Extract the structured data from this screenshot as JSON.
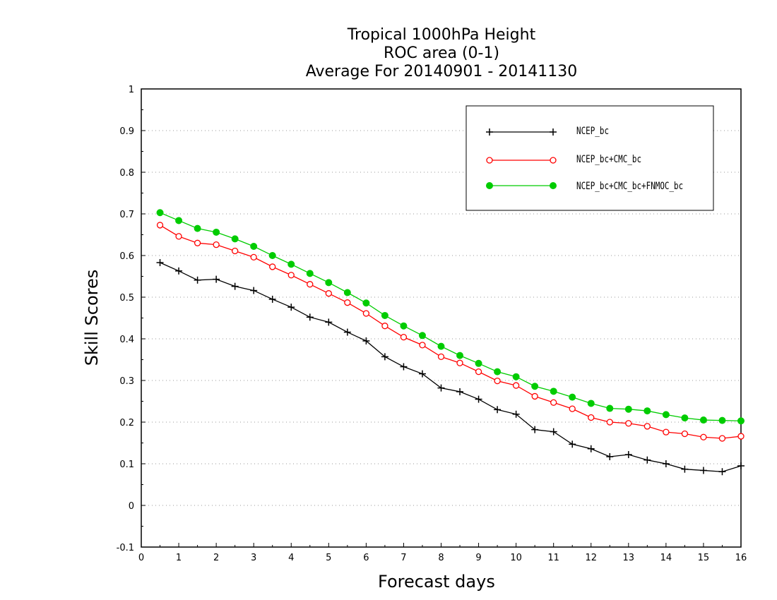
{
  "chart_data": {
    "type": "line",
    "title": [
      "Tropical 1000hPa Height",
      "ROC area (0-1)",
      "Average For 20140901 - 20141130"
    ],
    "xlabel": "Forecast days",
    "ylabel": "Skill Scores",
    "xlim": [
      0,
      16
    ],
    "ylim": [
      -0.1,
      1
    ],
    "xticks": [
      "0",
      "1",
      "2",
      "3",
      "4",
      "5",
      "6",
      "7",
      "8",
      "9",
      "10",
      "11",
      "12",
      "13",
      "14",
      "15",
      "16"
    ],
    "yticks": [
      "-0.1",
      "0",
      "0.1",
      "0.2",
      "0.3",
      "0.4",
      "0.5",
      "0.6",
      "0.7",
      "0.8",
      "0.9",
      "1"
    ],
    "grid": "dotted horizontal",
    "legend_position": "top-right",
    "x": [
      0.5,
      1,
      1.5,
      2,
      2.5,
      3,
      3.5,
      4,
      4.5,
      5,
      5.5,
      6,
      6.5,
      7,
      7.5,
      8,
      8.5,
      9,
      9.5,
      10,
      10.5,
      11,
      11.5,
      12,
      12.5,
      13,
      13.5,
      14,
      14.5,
      15,
      15.5,
      16
    ],
    "series": [
      {
        "name": "NCEP_bc",
        "color": "#000000",
        "marker": "plus",
        "values": [
          0.583,
          0.563,
          0.541,
          0.543,
          0.526,
          0.516,
          0.495,
          0.476,
          0.452,
          0.44,
          0.416,
          0.395,
          0.357,
          0.333,
          0.316,
          0.282,
          0.273,
          0.255,
          0.23,
          0.219,
          0.182,
          0.177,
          0.147,
          0.136,
          0.117,
          0.122,
          0.109,
          0.1,
          0.087,
          0.084,
          0.081,
          0.095
        ]
      },
      {
        "name": "NCEP_bc+CMC_bc",
        "color": "#ff0000",
        "marker": "open-circle",
        "values": [
          0.673,
          0.646,
          0.63,
          0.626,
          0.611,
          0.596,
          0.573,
          0.553,
          0.531,
          0.509,
          0.487,
          0.461,
          0.431,
          0.404,
          0.385,
          0.357,
          0.342,
          0.321,
          0.299,
          0.288,
          0.262,
          0.247,
          0.232,
          0.211,
          0.2,
          0.197,
          0.19,
          0.176,
          0.172,
          0.164,
          0.161,
          0.166
        ]
      },
      {
        "name": "NCEP_bc+CMC_bc+FNMOC_bc",
        "color": "#00cc00",
        "marker": "filled-circle",
        "values": [
          0.703,
          0.684,
          0.665,
          0.656,
          0.64,
          0.622,
          0.6,
          0.579,
          0.557,
          0.535,
          0.511,
          0.486,
          0.456,
          0.431,
          0.408,
          0.382,
          0.36,
          0.341,
          0.321,
          0.309,
          0.286,
          0.274,
          0.26,
          0.245,
          0.233,
          0.231,
          0.227,
          0.218,
          0.21,
          0.205,
          0.204,
          0.203
        ]
      }
    ]
  }
}
